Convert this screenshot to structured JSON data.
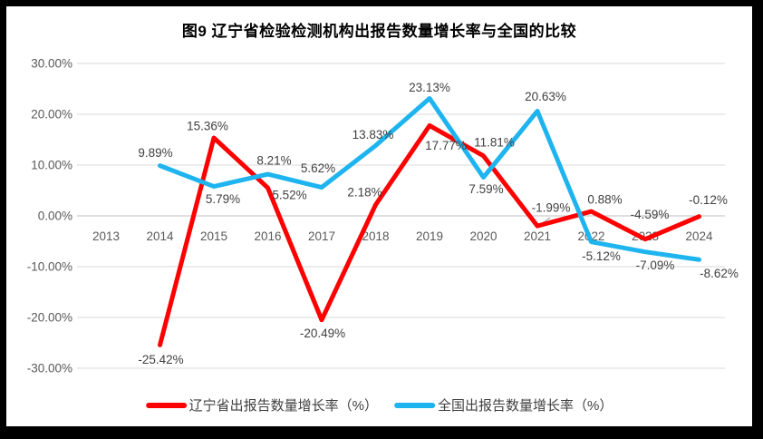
{
  "colors": {
    "liaoning_red": "#FE0000",
    "national_blue": "#1EB4EF",
    "gridline": "#D9D9D9",
    "zero_axis": "#BFBFBF",
    "axis_text": "#595959",
    "data_label_text": "#404040",
    "leader_line": "#A6A6A6",
    "frame": "#000000",
    "background": "#FFFFFF"
  },
  "chart_data": {
    "type": "line",
    "title": "图9  辽宁省检验检测机构出报告数量增长率与全国的比较",
    "categories": [
      "2013",
      "2014",
      "2015",
      "2016",
      "2017",
      "2018",
      "2019",
      "2020",
      "2021",
      "2022",
      "2023",
      "2024"
    ],
    "y_tick_labels": [
      "30.00%",
      "20.00%",
      "10.00%",
      "0.00%",
      "-10.00%",
      "-20.00%",
      "-30.00%"
    ],
    "ylim": [
      -30,
      30
    ],
    "grid": true,
    "legend_position": "bottom",
    "label_format": "0.00%",
    "series": [
      {
        "key": "liaoning",
        "name": "辽宁省出报告数量增长率（%）",
        "color": "#FE0000",
        "values": [
          null,
          -25.42,
          15.36,
          5.52,
          -20.49,
          2.18,
          17.77,
          11.81,
          -1.99,
          0.88,
          -4.59,
          -0.12
        ],
        "label_offsets": [
          [
            0,
            0
          ],
          [
            1,
            16
          ],
          [
            -7,
            -13
          ],
          [
            24,
            8
          ],
          [
            1,
            15
          ],
          [
            -12,
            -14
          ],
          [
            18,
            22
          ],
          [
            12,
            -15
          ],
          [
            15,
            -20
          ],
          [
            15,
            -13
          ],
          [
            5,
            -27
          ],
          [
            10,
            -18
          ]
        ]
      },
      {
        "key": "national",
        "name": "全国出报告数量增长率（%）",
        "color": "#1EB4EF",
        "values": [
          null,
          9.89,
          5.79,
          8.21,
          5.62,
          13.83,
          23.13,
          7.59,
          20.63,
          -5.12,
          -7.09,
          -8.62
        ],
        "label_offsets": [
          [
            0,
            0
          ],
          [
            -5,
            -14
          ],
          [
            10,
            14
          ],
          [
            7,
            -15
          ],
          [
            -4,
            -21
          ],
          [
            -3,
            -12
          ],
          [
            0,
            -12
          ],
          [
            3,
            13
          ],
          [
            9,
            -16
          ],
          [
            11,
            16
          ],
          [
            11,
            15
          ],
          [
            22,
            15
          ]
        ]
      }
    ]
  }
}
